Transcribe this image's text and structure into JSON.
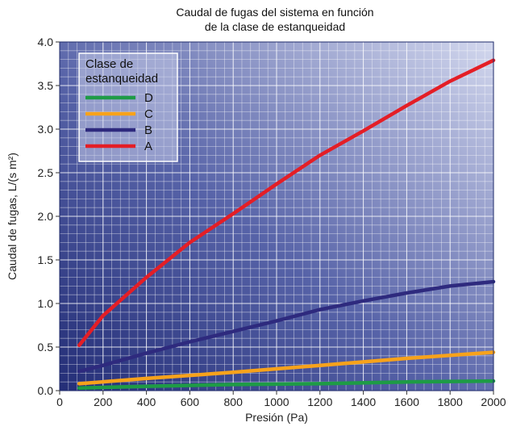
{
  "chart_data": {
    "type": "line",
    "title_lines": [
      "Caudal de fugas del sistema en función",
      "de la clase de estanqueidad"
    ],
    "xlabel": "Presión (Pa)",
    "ylabel": "Caudal de fugas, L/(s m²)",
    "xlim": [
      0,
      2000
    ],
    "ylim": [
      0,
      4.0
    ],
    "x_ticks": [
      0,
      200,
      400,
      600,
      800,
      1000,
      1200,
      1400,
      1600,
      1800,
      2000
    ],
    "x_tick_labels": [
      "0",
      "200",
      "400",
      "600",
      "800",
      "1000",
      "1200",
      "1400",
      "1600",
      "1800",
      "2000"
    ],
    "y_ticks": [
      0,
      0.5,
      1.0,
      1.5,
      2.0,
      2.5,
      3.0,
      3.5,
      4.0
    ],
    "y_tick_labels": [
      "0.0",
      "0.5",
      "1.0",
      "1.5",
      "2.0",
      "2.5",
      "3.0",
      "3.5",
      "4.0"
    ],
    "grid": true,
    "legend": {
      "title_lines": [
        "Clase de",
        "estanqueidad"
      ],
      "placement": "top-left"
    },
    "series": [
      {
        "name": "D",
        "color": "#1e9b46",
        "points": [
          [
            90,
            0.03
          ],
          [
            400,
            0.05
          ],
          [
            800,
            0.07
          ],
          [
            1200,
            0.08
          ],
          [
            1600,
            0.1
          ],
          [
            2000,
            0.11
          ]
        ]
      },
      {
        "name": "C",
        "color": "#f7a21b",
        "points": [
          [
            90,
            0.08
          ],
          [
            400,
            0.14
          ],
          [
            800,
            0.21
          ],
          [
            1200,
            0.29
          ],
          [
            1600,
            0.37
          ],
          [
            2000,
            0.44
          ]
        ]
      },
      {
        "name": "B",
        "color": "#2e2a7e",
        "points": [
          [
            90,
            0.22
          ],
          [
            200,
            0.29
          ],
          [
            400,
            0.43
          ],
          [
            600,
            0.56
          ],
          [
            800,
            0.68
          ],
          [
            1000,
            0.8
          ],
          [
            1200,
            0.93
          ],
          [
            1400,
            1.03
          ],
          [
            1600,
            1.12
          ],
          [
            1800,
            1.2
          ],
          [
            2000,
            1.25
          ]
        ]
      },
      {
        "name": "A",
        "color": "#e41e26",
        "points": [
          [
            90,
            0.52
          ],
          [
            200,
            0.86
          ],
          [
            400,
            1.3
          ],
          [
            600,
            1.7
          ],
          [
            800,
            2.03
          ],
          [
            1000,
            2.37
          ],
          [
            1200,
            2.7
          ],
          [
            1400,
            2.98
          ],
          [
            1600,
            3.27
          ],
          [
            1800,
            3.55
          ],
          [
            2000,
            3.79
          ]
        ]
      }
    ],
    "legend_order": [
      "D",
      "C",
      "B",
      "A"
    ]
  }
}
